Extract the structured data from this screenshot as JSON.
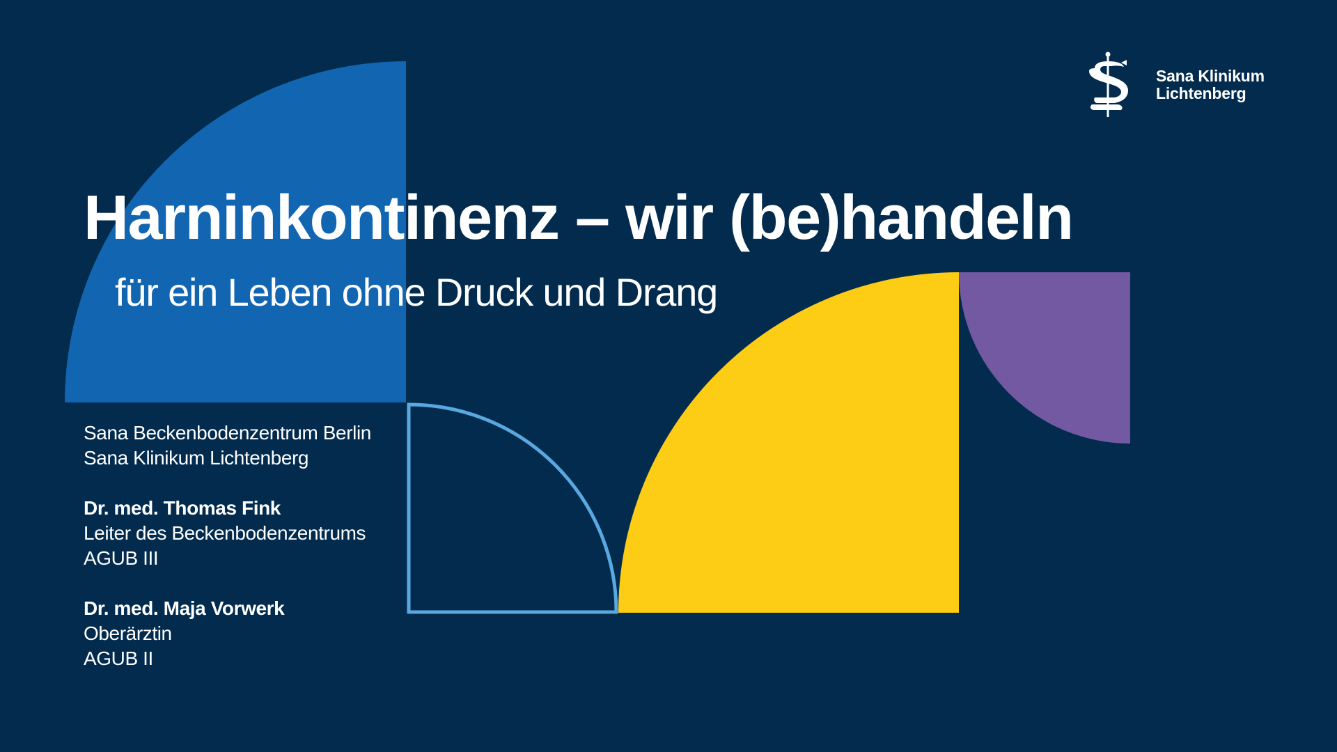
{
  "colors": {
    "background": "#022b4e",
    "blue": "#1265b0",
    "light_blue_outline": "#5aa8e0",
    "yellow": "#fdcc14",
    "purple": "#7259a1",
    "text": "#ffffff"
  },
  "logo": {
    "icon": "sana-snake-staff-icon",
    "line1": "Sana Klinikum",
    "line2": "Lichtenberg"
  },
  "title": "Harninkontinenz – wir (be)handeln",
  "subtitle": "für ein Leben ohne Druck und Drang",
  "info": {
    "center_line1": "Sana Beckenbodenzentrum Berlin",
    "center_line2": "Sana Klinikum Lichtenberg",
    "person1": {
      "name": "Dr. med. Thomas Fink",
      "role": "Leiter des Beckenbodenzentrums",
      "cert": "AGUB III"
    },
    "person2": {
      "name": "Dr. med. Maja Vorwerk",
      "role": "Oberärztin",
      "cert": "AGUB II"
    }
  }
}
